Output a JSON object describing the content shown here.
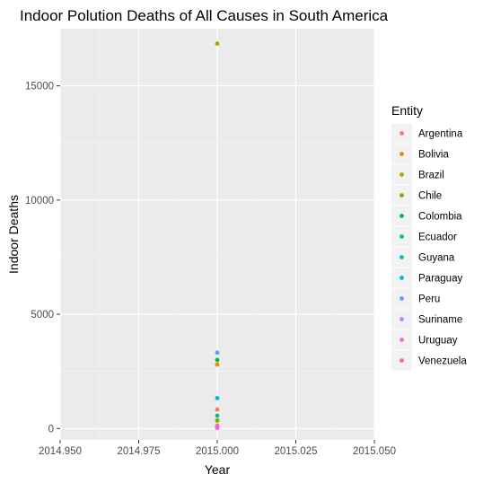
{
  "chart_data": {
    "type": "scatter",
    "title": "Indoor Polution Deaths of All Causes in South America",
    "xlabel": "Year",
    "ylabel": "Indoor Deaths",
    "xlim": [
      2014.95,
      2015.05
    ],
    "ylim": [
      -500,
      17500
    ],
    "x_ticks": [
      "2014.950",
      "2014.975",
      "2015.000",
      "2015.025",
      "2015.050"
    ],
    "x_tick_values": [
      2014.95,
      2014.975,
      2015.0,
      2015.025,
      2015.05
    ],
    "y_ticks": [
      "0",
      "5000",
      "10000",
      "15000"
    ],
    "y_tick_values": [
      0,
      5000,
      10000,
      15000
    ],
    "grid": true,
    "legend": {
      "title": "Entity",
      "position": "right"
    },
    "series": [
      {
        "name": "Argentina",
        "color": "#F8766D",
        "x": 2015.0,
        "y": 830
      },
      {
        "name": "Bolivia",
        "color": "#DE8C00",
        "x": 2015.0,
        "y": 2800
      },
      {
        "name": "Brazil",
        "color": "#B79F00",
        "x": 2015.0,
        "y": 16850
      },
      {
        "name": "Chile",
        "color": "#7CAE00",
        "x": 2015.0,
        "y": 350
      },
      {
        "name": "Colombia",
        "color": "#00BA38",
        "x": 2015.0,
        "y": 3000
      },
      {
        "name": "Ecuador",
        "color": "#00C08B",
        "x": 2015.0,
        "y": 560
      },
      {
        "name": "Guyana",
        "color": "#00BFC4",
        "x": 2015.0,
        "y": 70
      },
      {
        "name": "Paraguay",
        "color": "#00B4F0",
        "x": 2015.0,
        "y": 1330
      },
      {
        "name": "Peru",
        "color": "#619CFF",
        "x": 2015.0,
        "y": 3320
      },
      {
        "name": "Suriname",
        "color": "#C77CFF",
        "x": 2015.0,
        "y": 20
      },
      {
        "name": "Uruguay",
        "color": "#F564E3",
        "x": 2015.0,
        "y": 60
      },
      {
        "name": "Venezuela",
        "color": "#FF64B0",
        "x": 2015.0,
        "y": 130
      }
    ]
  }
}
